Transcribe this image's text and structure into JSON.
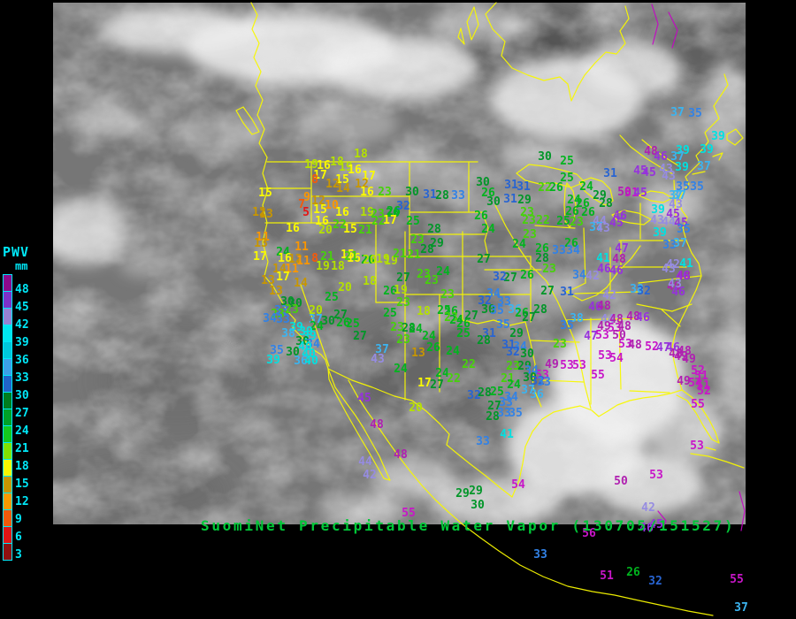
{
  "title": {
    "text": "SuomiNet Precipitable Water Vapor (130705/151527)",
    "color": "#00c838"
  },
  "legend": {
    "title": "PWV",
    "unit": "mm",
    "text_color": "#00e8f8",
    "labels": [
      "48",
      "45",
      "42",
      "39",
      "36",
      "33",
      "30",
      "27",
      "24",
      "21",
      "18",
      "15",
      "12",
      "9",
      "6",
      "3"
    ],
    "cells": [
      "#8c0a8c",
      "#7d32c8",
      "#9682d2",
      "#00e6f0",
      "#00c8dc",
      "#3ca0e6",
      "#2064c8",
      "#007d1e",
      "#00a028",
      "#14c81e",
      "#82e100",
      "#f8f800",
      "#c89600",
      "#f89b00",
      "#f05a0a",
      "#e11414",
      "#8f1010"
    ]
  },
  "map": {
    "border_color": "#f8f800",
    "province_border_color": "#c800c8",
    "background": "#000000"
  },
  "palette": [
    {
      "max": 5,
      "color": "#e61414"
    },
    {
      "max": 8,
      "color": "#f55a0a"
    },
    {
      "max": 11,
      "color": "#fa9600"
    },
    {
      "max": 14,
      "color": "#c89600"
    },
    {
      "max": 17,
      "color": "#fafa00"
    },
    {
      "max": 20,
      "color": "#b4e100"
    },
    {
      "max": 23,
      "color": "#46d20a"
    },
    {
      "max": 26,
      "color": "#00b41e"
    },
    {
      "max": 30,
      "color": "#009628"
    },
    {
      "max": 32,
      "color": "#2864d2"
    },
    {
      "max": 35,
      "color": "#3282e6"
    },
    {
      "max": 38,
      "color": "#3cb4f0"
    },
    {
      "max": 41,
      "color": "#00e1e1"
    },
    {
      "max": 44,
      "color": "#968ce1"
    },
    {
      "max": 47,
      "color": "#9632dc"
    },
    {
      "max": 50,
      "color": "#b020b0"
    },
    {
      "max": 99,
      "color": "#c816c8"
    }
  ],
  "stations": [
    [
      18,
      408,
      175
    ],
    [
      19,
      352,
      187
    ],
    [
      16,
      366,
      188
    ],
    [
      18,
      381,
      184
    ],
    [
      19,
      391,
      190
    ],
    [
      16,
      401,
      193
    ],
    [
      17,
      362,
      199
    ],
    [
      8,
      356,
      204
    ],
    [
      15,
      387,
      204
    ],
    [
      12,
      376,
      209
    ],
    [
      14,
      388,
      214
    ],
    [
      17,
      417,
      200
    ],
    [
      12,
      409,
      209
    ],
    [
      16,
      415,
      218
    ],
    [
      23,
      435,
      218
    ],
    [
      15,
      300,
      219
    ],
    [
      9,
      347,
      224
    ],
    [
      7,
      341,
      232
    ],
    [
      12,
      360,
      228
    ],
    [
      5,
      346,
      241
    ],
    [
      15,
      362,
      238
    ],
    [
      10,
      375,
      233
    ],
    [
      16,
      387,
      241
    ],
    [
      16,
      364,
      251
    ],
    [
      12,
      293,
      241
    ],
    [
      13,
      301,
      243
    ],
    [
      16,
      331,
      259
    ],
    [
      20,
      368,
      261
    ],
    [
      22,
      384,
      255
    ],
    [
      15,
      396,
      260
    ],
    [
      21,
      413,
      261
    ],
    [
      19,
      415,
      241
    ],
    [
      23,
      427,
      243
    ],
    [
      26,
      444,
      242
    ],
    [
      22,
      428,
      251
    ],
    [
      11,
      297,
      269
    ],
    [
      13,
      295,
      276
    ],
    [
      17,
      294,
      291
    ],
    [
      24,
      320,
      286
    ],
    [
      11,
      341,
      280
    ],
    [
      21,
      370,
      291
    ],
    [
      15,
      393,
      289
    ],
    [
      16,
      400,
      293
    ],
    [
      26,
      416,
      295
    ],
    [
      19,
      433,
      294
    ],
    [
      19,
      442,
      296
    ],
    [
      16,
      322,
      293
    ],
    [
      12,
      334,
      294
    ],
    [
      11,
      343,
      296
    ],
    [
      8,
      356,
      293
    ],
    [
      19,
      365,
      302
    ],
    [
      18,
      382,
      302
    ],
    [
      21,
      397,
      291
    ],
    [
      20,
      418,
      295
    ],
    [
      14,
      316,
      305
    ],
    [
      11,
      330,
      305
    ],
    [
      17,
      320,
      314
    ],
    [
      13,
      303,
      318
    ],
    [
      14,
      340,
      321
    ],
    [
      13,
      312,
      330
    ],
    [
      20,
      390,
      326
    ],
    [
      18,
      418,
      319
    ],
    [
      26,
      441,
      330
    ],
    [
      25,
      375,
      337
    ],
    [
      30,
      325,
      342
    ],
    [
      30,
      334,
      344
    ],
    [
      20,
      357,
      352
    ],
    [
      33,
      318,
      352
    ],
    [
      23,
      330,
      351
    ],
    [
      23,
      314,
      356
    ],
    [
      34,
      305,
      361
    ],
    [
      33,
      320,
      362
    ],
    [
      37,
      357,
      362
    ],
    [
      30,
      371,
      364
    ],
    [
      26,
      388,
      366
    ],
    [
      25,
      399,
      367
    ],
    [
      27,
      385,
      357
    ],
    [
      25,
      441,
      355
    ],
    [
      24,
      358,
      370
    ],
    [
      39,
      335,
      371
    ],
    [
      39,
      346,
      376
    ],
    [
      38,
      326,
      378
    ],
    [
      39,
      350,
      381
    ],
    [
      27,
      407,
      381
    ],
    [
      30,
      342,
      387
    ],
    [
      34,
      354,
      390
    ],
    [
      40,
      345,
      393
    ],
    [
      35,
      313,
      397
    ],
    [
      30,
      331,
      399
    ],
    [
      40,
      349,
      401
    ],
    [
      37,
      432,
      396
    ],
    [
      39,
      309,
      408
    ],
    [
      36,
      340,
      409
    ],
    [
      40,
      352,
      409
    ],
    [
      43,
      427,
      407
    ],
    [
      30,
      466,
      218
    ],
    [
      31,
      486,
      221
    ],
    [
      28,
      500,
      222
    ],
    [
      33,
      518,
      222
    ],
    [
      30,
      546,
      207
    ],
    [
      26,
      552,
      219
    ],
    [
      31,
      578,
      210
    ],
    [
      31,
      592,
      212
    ],
    [
      30,
      558,
      229
    ],
    [
      31,
      577,
      226
    ],
    [
      29,
      593,
      227
    ],
    [
      32,
      456,
      234
    ],
    [
      26,
      445,
      240
    ],
    [
      17,
      441,
      250
    ],
    [
      25,
      467,
      251
    ],
    [
      26,
      544,
      245
    ],
    [
      23,
      596,
      241
    ],
    [
      23,
      598,
      250
    ],
    [
      28,
      491,
      260
    ],
    [
      24,
      552,
      260
    ],
    [
      23,
      599,
      266
    ],
    [
      23,
      472,
      272
    ],
    [
      29,
      494,
      276
    ],
    [
      24,
      587,
      277
    ],
    [
      28,
      483,
      283
    ],
    [
      21,
      452,
      288
    ],
    [
      21,
      468,
      289
    ],
    [
      27,
      547,
      294
    ],
    [
      30,
      616,
      178
    ],
    [
      25,
      641,
      183
    ],
    [
      31,
      690,
      197
    ],
    [
      48,
      736,
      172
    ],
    [
      46,
      747,
      178
    ],
    [
      39,
      772,
      171
    ],
    [
      37,
      766,
      178
    ],
    [
      45,
      724,
      194
    ],
    [
      45,
      734,
      196
    ],
    [
      43,
      753,
      192
    ],
    [
      43,
      756,
      200
    ],
    [
      39,
      771,
      190
    ],
    [
      35,
      788,
      212
    ],
    [
      25,
      641,
      202
    ],
    [
      22,
      616,
      213
    ],
    [
      26,
      629,
      213
    ],
    [
      24,
      663,
      212
    ],
    [
      29,
      678,
      222
    ],
    [
      50,
      706,
      218
    ],
    [
      51,
      714,
      219
    ],
    [
      45,
      724,
      219
    ],
    [
      24,
      649,
      227
    ],
    [
      26,
      659,
      231
    ],
    [
      28,
      685,
      231
    ],
    [
      37,
      764,
      222
    ],
    [
      26,
      647,
      240
    ],
    [
      26,
      665,
      241
    ],
    [
      46,
      701,
      245
    ],
    [
      39,
      744,
      238
    ],
    [
      22,
      614,
      250
    ],
    [
      25,
      637,
      251
    ],
    [
      23,
      652,
      252
    ],
    [
      44,
      678,
      251
    ],
    [
      45,
      697,
      253
    ],
    [
      37,
      674,
      258
    ],
    [
      43,
      682,
      259
    ],
    [
      43,
      743,
      250
    ],
    [
      44,
      756,
      252
    ],
    [
      45,
      770,
      253
    ],
    [
      39,
      746,
      264
    ],
    [
      26,
      613,
      282
    ],
    [
      26,
      646,
      276
    ],
    [
      33,
      632,
      284
    ],
    [
      34,
      648,
      284
    ],
    [
      47,
      703,
      282
    ],
    [
      28,
      613,
      293
    ],
    [
      41,
      682,
      293
    ],
    [
      48,
      700,
      294
    ],
    [
      33,
      757,
      278
    ],
    [
      37,
      766,
      128
    ],
    [
      35,
      786,
      129
    ],
    [
      39,
      812,
      155
    ],
    [
      39,
      799,
      170
    ],
    [
      37,
      796,
      189
    ],
    [
      35,
      772,
      212
    ],
    [
      37,
      768,
      222
    ],
    [
      43,
      764,
      232
    ],
    [
      45,
      761,
      243
    ],
    [
      35,
      773,
      260
    ],
    [
      37,
      769,
      276
    ],
    [
      42,
      761,
      300
    ],
    [
      41,
      776,
      299
    ],
    [
      48,
      773,
      313
    ],
    [
      49,
      762,
      325
    ],
    [
      23,
      621,
      305
    ],
    [
      34,
      655,
      312
    ],
    [
      42,
      670,
      313
    ],
    [
      46,
      683,
      305
    ],
    [
      46,
      697,
      307
    ],
    [
      43,
      756,
      305
    ],
    [
      46,
      772,
      313
    ],
    [
      27,
      619,
      330
    ],
    [
      31,
      641,
      331
    ],
    [
      38,
      720,
      328
    ],
    [
      32,
      728,
      330
    ],
    [
      43,
      763,
      322
    ],
    [
      46,
      767,
      331
    ],
    [
      42,
      689,
      335
    ],
    [
      28,
      611,
      351
    ],
    [
      46,
      673,
      348
    ],
    [
      48,
      683,
      347
    ],
    [
      38,
      652,
      361
    ],
    [
      35,
      641,
      369
    ],
    [
      44,
      687,
      362
    ],
    [
      48,
      697,
      362
    ],
    [
      48,
      716,
      359
    ],
    [
      46,
      727,
      360
    ],
    [
      49,
      683,
      370
    ],
    [
      53,
      695,
      372
    ],
    [
      48,
      706,
      370
    ],
    [
      47,
      668,
      381
    ],
    [
      53,
      681,
      380
    ],
    [
      50,
      700,
      380
    ],
    [
      23,
      633,
      390
    ],
    [
      53,
      707,
      390
    ],
    [
      48,
      718,
      391
    ],
    [
      52,
      737,
      393
    ],
    [
      47,
      750,
      394
    ],
    [
      46,
      761,
      394
    ],
    [
      48,
      764,
      401
    ],
    [
      49,
      770,
      404
    ],
    [
      53,
      684,
      403
    ],
    [
      54,
      697,
      406
    ],
    [
      55,
      676,
      425
    ],
    [
      49,
      624,
      413
    ],
    [
      53,
      641,
      414
    ],
    [
      53,
      655,
      414
    ],
    [
      53,
      613,
      425
    ],
    [
      48,
      774,
      398
    ],
    [
      49,
      779,
      407
    ],
    [
      52,
      789,
      420
    ],
    [
      51,
      793,
      426
    ],
    [
      49,
      773,
      432
    ],
    [
      54,
      786,
      434
    ],
    [
      51,
      795,
      437
    ],
    [
      52,
      796,
      443
    ],
    [
      55,
      789,
      458
    ],
    [
      53,
      788,
      505
    ],
    [
      53,
      742,
      538
    ],
    [
      50,
      702,
      545
    ],
    [
      42,
      733,
      575
    ],
    [
      27,
      456,
      315
    ],
    [
      23,
      479,
      311
    ],
    [
      23,
      488,
      318
    ],
    [
      24,
      501,
      308
    ],
    [
      27,
      577,
      315
    ],
    [
      32,
      565,
      314
    ],
    [
      26,
      596,
      312
    ],
    [
      19,
      453,
      329
    ],
    [
      23,
      506,
      334
    ],
    [
      23,
      456,
      343
    ],
    [
      18,
      479,
      353
    ],
    [
      25,
      502,
      352
    ],
    [
      26,
      510,
      353
    ],
    [
      23,
      510,
      360
    ],
    [
      27,
      533,
      358
    ],
    [
      26,
      524,
      367
    ],
    [
      24,
      516,
      363
    ],
    [
      34,
      558,
      333
    ],
    [
      32,
      548,
      341
    ],
    [
      33,
      570,
      342
    ],
    [
      30,
      552,
      351
    ],
    [
      35,
      562,
      352
    ],
    [
      36,
      582,
      351
    ],
    [
      26,
      590,
      355
    ],
    [
      27,
      598,
      360
    ],
    [
      23,
      449,
      371
    ],
    [
      28,
      462,
      372
    ],
    [
      24,
      470,
      373
    ],
    [
      23,
      456,
      385
    ],
    [
      35,
      569,
      368
    ],
    [
      31,
      553,
      378
    ],
    [
      29,
      584,
      378
    ],
    [
      25,
      524,
      378
    ],
    [
      24,
      485,
      381
    ],
    [
      26,
      490,
      394
    ],
    [
      28,
      547,
      386
    ],
    [
      31,
      575,
      391
    ],
    [
      34,
      588,
      393
    ],
    [
      32,
      580,
      399
    ],
    [
      30,
      596,
      401
    ],
    [
      13,
      473,
      400
    ],
    [
      24,
      512,
      398
    ],
    [
      22,
      530,
      413
    ],
    [
      23,
      580,
      415
    ],
    [
      29,
      593,
      415
    ],
    [
      34,
      601,
      420
    ],
    [
      24,
      453,
      418
    ],
    [
      24,
      500,
      423
    ],
    [
      22,
      513,
      429
    ],
    [
      21,
      574,
      429
    ],
    [
      24,
      581,
      436
    ],
    [
      30,
      599,
      428
    ],
    [
      32,
      608,
      432
    ],
    [
      33,
      615,
      433
    ],
    [
      17,
      480,
      434
    ],
    [
      27,
      494,
      436
    ],
    [
      20,
      470,
      462
    ],
    [
      32,
      536,
      448
    ],
    [
      28,
      548,
      445
    ],
    [
      25,
      562,
      444
    ],
    [
      34,
      578,
      450
    ],
    [
      33,
      572,
      456
    ],
    [
      27,
      559,
      460
    ],
    [
      33,
      570,
      468
    ],
    [
      35,
      583,
      468
    ],
    [
      37,
      597,
      442
    ],
    [
      36,
      607,
      447
    ],
    [
      28,
      557,
      472
    ],
    [
      41,
      573,
      492
    ],
    [
      33,
      546,
      500
    ],
    [
      54,
      586,
      549
    ],
    [
      29,
      523,
      559
    ],
    [
      29,
      538,
      556
    ],
    [
      30,
      540,
      572
    ],
    [
      55,
      462,
      581
    ],
    [
      45,
      412,
      451
    ],
    [
      48,
      426,
      481
    ],
    [
      48,
      453,
      515
    ],
    [
      44,
      413,
      523
    ],
    [
      42,
      418,
      538
    ],
    [
      56,
      666,
      604
    ],
    [
      46,
      731,
      598
    ],
    [
      45,
      742,
      594
    ],
    [
      33,
      611,
      628
    ],
    [
      51,
      686,
      652
    ],
    [
      26,
      716,
      648
    ],
    [
      32,
      741,
      658
    ],
    [
      55,
      833,
      656
    ],
    [
      37,
      838,
      688
    ]
  ]
}
